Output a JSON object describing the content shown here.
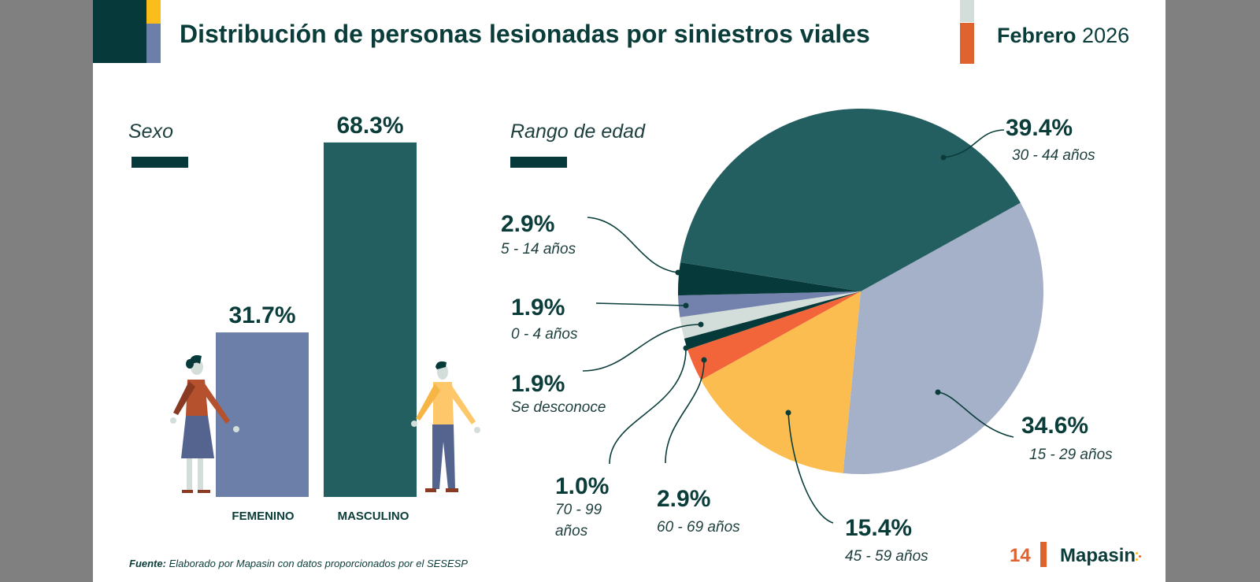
{
  "header": {
    "title": "Distribución de personas lesionadas por siniestros viales",
    "month": "Febrero",
    "year": "2026"
  },
  "colors": {
    "dark_teal": "#063a3a",
    "teal": "#235f60",
    "slate_blue": "#6b7fa8",
    "light_blue_gray": "#a5b0c9",
    "yellow": "#fbbd4f",
    "orange": "#f2643a",
    "light_gray_green": "#d3ddd9",
    "brand_orange": "#e0622f"
  },
  "chart_data": [
    {
      "type": "bar",
      "title": "Sexo",
      "categories": [
        "FEMENINO",
        "MASCULINO"
      ],
      "values": [
        31.7,
        68.3
      ],
      "value_labels": [
        "31.7%",
        "68.3%"
      ],
      "colors": [
        "#6b7fa8",
        "#235f60"
      ],
      "unit": "%"
    },
    {
      "type": "pie",
      "title": "Rango de edad",
      "slices": [
        {
          "label": "15 - 29 años",
          "value": 34.6,
          "value_label": "34.6%",
          "color": "#a5b0c9"
        },
        {
          "label": "45 - 59 años",
          "value": 15.4,
          "value_label": "15.4%",
          "color": "#fbbd4f"
        },
        {
          "label": "60 - 69 años",
          "value": 2.9,
          "value_label": "2.9%",
          "color": "#f2643a"
        },
        {
          "label": "70 - 99 años",
          "label_lines": [
            "70 - 99",
            "años"
          ],
          "value": 1.0,
          "value_label": "1.0%",
          "color": "#063a3a"
        },
        {
          "label": "Se desconoce",
          "value": 1.9,
          "value_label": "1.9%",
          "color": "#d3ddd9"
        },
        {
          "label": "0 - 4 años",
          "value": 1.9,
          "value_label": "1.9%",
          "color": "#7282ac"
        },
        {
          "label": "5 - 14 años",
          "value": 2.9,
          "value_label": "2.9%",
          "color": "#063a3a"
        },
        {
          "label": "30 - 44 años",
          "value": 39.4,
          "value_label": "39.4%",
          "color": "#235f60"
        }
      ]
    }
  ],
  "footer": {
    "source_label": "Fuente:",
    "source_text": "Elaborado por Mapasin con datos proporcionados por el SESESP",
    "page_number": "14",
    "brand": "Mapasin"
  }
}
